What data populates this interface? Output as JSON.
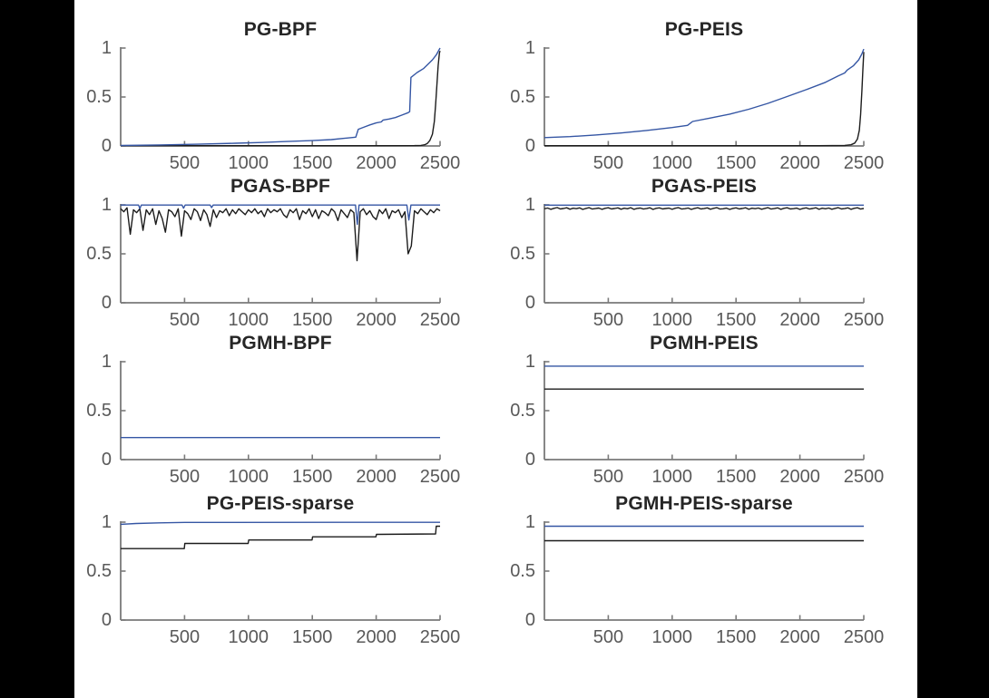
{
  "window": {
    "description": "MATLAB-style figure with 8 line subplots in a 4x2 grid, black letterbox bars on left and right edges"
  },
  "colors": {
    "blue_line": "#3556A4",
    "black_line": "#1c1c1c",
    "axis": "#7a7a7a",
    "tick_label": "#595959",
    "title": "#262626",
    "figure_background": "#ffffff",
    "bar_background": "#000000"
  },
  "chart_data": [
    {
      "type": "line",
      "title": "PG-BPF",
      "xlim": [
        0,
        2500
      ],
      "ylim": [
        0,
        1
      ],
      "grid": false,
      "legend": "none",
      "xticks": [
        "500",
        "1000",
        "1500",
        "2000",
        "2500"
      ],
      "xtick_values": [
        500,
        1000,
        1500,
        2000,
        2500
      ],
      "yticks": [
        "0",
        "0.5",
        "1"
      ],
      "ytick_values": [
        0,
        0.5,
        1
      ],
      "series": [
        {
          "name": "black-line",
          "color": "black_line",
          "points": [
            [
              0,
              0.003
            ],
            [
              2000,
              0.003
            ],
            [
              2300,
              0.004
            ],
            [
              2350,
              0.006
            ],
            [
              2380,
              0.012
            ],
            [
              2400,
              0.025
            ],
            [
              2420,
              0.055
            ],
            [
              2440,
              0.12
            ],
            [
              2455,
              0.25
            ],
            [
              2465,
              0.42
            ],
            [
              2475,
              0.62
            ],
            [
              2485,
              0.82
            ],
            [
              2495,
              0.95
            ],
            [
              2500,
              0.97
            ]
          ]
        },
        {
          "name": "blue-line",
          "color": "blue_line",
          "points": [
            [
              0,
              0.005
            ],
            [
              300,
              0.01
            ],
            [
              600,
              0.018
            ],
            [
              900,
              0.028
            ],
            [
              1100,
              0.035
            ],
            [
              1300,
              0.045
            ],
            [
              1500,
              0.055
            ],
            [
              1650,
              0.065
            ],
            [
              1750,
              0.078
            ],
            [
              1840,
              0.09
            ],
            [
              1860,
              0.17
            ],
            [
              1900,
              0.19
            ],
            [
              1950,
              0.215
            ],
            [
              2000,
              0.235
            ],
            [
              2040,
              0.245
            ],
            [
              2055,
              0.265
            ],
            [
              2100,
              0.275
            ],
            [
              2150,
              0.29
            ],
            [
              2200,
              0.315
            ],
            [
              2250,
              0.34
            ],
            [
              2262,
              0.35
            ],
            [
              2272,
              0.7
            ],
            [
              2320,
              0.75
            ],
            [
              2370,
              0.79
            ],
            [
              2410,
              0.84
            ],
            [
              2440,
              0.88
            ],
            [
              2470,
              0.93
            ],
            [
              2500,
              1.0
            ]
          ]
        }
      ]
    },
    {
      "type": "line",
      "title": "PG-PEIS",
      "xlim": [
        0,
        2500
      ],
      "ylim": [
        0,
        1
      ],
      "grid": false,
      "legend": "none",
      "xticks": [
        "500",
        "1000",
        "1500",
        "2000",
        "2500"
      ],
      "xtick_values": [
        500,
        1000,
        1500,
        2000,
        2500
      ],
      "yticks": [
        "0",
        "0.5",
        "1"
      ],
      "ytick_values": [
        0,
        0.5,
        1
      ],
      "series": [
        {
          "name": "black-line",
          "color": "black_line",
          "points": [
            [
              0,
              0.003
            ],
            [
              2150,
              0.003
            ],
            [
              2350,
              0.005
            ],
            [
              2400,
              0.012
            ],
            [
              2430,
              0.03
            ],
            [
              2450,
              0.07
            ],
            [
              2465,
              0.16
            ],
            [
              2475,
              0.32
            ],
            [
              2485,
              0.56
            ],
            [
              2493,
              0.78
            ],
            [
              2500,
              0.96
            ]
          ]
        },
        {
          "name": "blue-line",
          "color": "blue_line",
          "points": [
            [
              0,
              0.085
            ],
            [
              200,
              0.095
            ],
            [
              400,
              0.112
            ],
            [
              600,
              0.132
            ],
            [
              800,
              0.158
            ],
            [
              1000,
              0.188
            ],
            [
              1120,
              0.21
            ],
            [
              1160,
              0.25
            ],
            [
              1300,
              0.285
            ],
            [
              1450,
              0.325
            ],
            [
              1600,
              0.375
            ],
            [
              1750,
              0.435
            ],
            [
              1900,
              0.505
            ],
            [
              2050,
              0.575
            ],
            [
              2200,
              0.65
            ],
            [
              2300,
              0.715
            ],
            [
              2350,
              0.745
            ],
            [
              2370,
              0.775
            ],
            [
              2420,
              0.82
            ],
            [
              2460,
              0.88
            ],
            [
              2485,
              0.94
            ],
            [
              2500,
              0.99
            ]
          ]
        }
      ]
    },
    {
      "type": "line",
      "title": "PGAS-BPF",
      "xlim": [
        0,
        2500
      ],
      "ylim": [
        0,
        1
      ],
      "grid": false,
      "legend": "none",
      "xticks": [
        "500",
        "1000",
        "1500",
        "2000",
        "2500"
      ],
      "xtick_values": [
        500,
        1000,
        1500,
        2000,
        2500
      ],
      "yticks": [
        "0",
        "0.5",
        "1"
      ],
      "ytick_values": [
        0,
        0.5,
        1
      ],
      "series": [
        {
          "name": "black-line",
          "color": "black_line",
          "x0": 0,
          "dx": 25,
          "y": [
            0.96,
            0.93,
            0.97,
            0.7,
            0.95,
            0.92,
            0.96,
            0.74,
            0.95,
            0.9,
            0.96,
            0.8,
            0.94,
            0.86,
            0.72,
            0.95,
            0.93,
            0.88,
            0.96,
            0.68,
            0.94,
            0.91,
            0.85,
            0.96,
            0.93,
            0.84,
            0.95,
            0.9,
            0.78,
            0.95,
            0.87,
            0.94,
            0.92,
            0.96,
            0.89,
            0.95,
            0.91,
            0.96,
            0.93,
            0.9,
            0.95,
            0.92,
            0.96,
            0.91,
            0.94,
            0.88,
            0.96,
            0.92,
            0.95,
            0.93,
            0.96,
            0.9,
            0.87,
            0.95,
            0.92,
            0.96,
            0.85,
            0.94,
            0.91,
            0.96,
            0.88,
            0.95,
            0.86,
            0.94,
            0.92,
            0.89,
            0.96,
            0.93,
            0.84,
            0.95,
            0.91,
            0.87,
            0.95,
            0.92,
            0.43,
            0.93,
            0.96,
            0.9,
            0.94,
            0.88,
            0.85,
            0.95,
            0.91,
            0.96,
            0.86,
            0.94,
            0.92,
            0.95,
            0.87,
            0.93,
            0.5,
            0.58,
            0.94,
            0.91,
            0.96,
            0.93,
            0.9,
            0.95,
            0.92,
            0.96,
            0.94
          ]
        },
        {
          "name": "blue-line",
          "color": "blue_line",
          "points": [
            [
              0,
              0.998
            ],
            [
              140,
              0.998
            ],
            [
              150,
              0.962
            ],
            [
              162,
              0.998
            ],
            [
              480,
              0.998
            ],
            [
              492,
              0.966
            ],
            [
              505,
              0.998
            ],
            [
              700,
              0.998
            ],
            [
              712,
              0.972
            ],
            [
              724,
              0.998
            ],
            [
              1838,
              0.998
            ],
            [
              1852,
              0.8
            ],
            [
              1866,
              0.998
            ],
            [
              2240,
              0.998
            ],
            [
              2256,
              0.845
            ],
            [
              2272,
              0.998
            ],
            [
              2500,
              0.998
            ]
          ]
        }
      ]
    },
    {
      "type": "line",
      "title": "PGAS-PEIS",
      "xlim": [
        0,
        2500
      ],
      "ylim": [
        0,
        1
      ],
      "grid": false,
      "legend": "none",
      "xticks": [
        "500",
        "1000",
        "1500",
        "2000",
        "2500"
      ],
      "xtick_values": [
        500,
        1000,
        1500,
        2000,
        2500
      ],
      "yticks": [
        "0",
        "0.5",
        "1"
      ],
      "ytick_values": [
        0,
        0.5,
        1
      ],
      "series": [
        {
          "name": "black-line",
          "color": "black_line",
          "x0": 0,
          "dx": 25,
          "y": [
            0.96,
            0.968,
            0.955,
            0.965,
            0.972,
            0.958,
            0.963,
            0.97,
            0.956,
            0.966,
            0.961,
            0.969,
            0.954,
            0.964,
            0.971,
            0.957,
            0.962,
            0.968,
            0.955,
            0.965,
            0.97,
            0.958,
            0.963,
            0.969,
            0.956,
            0.966,
            0.96,
            0.971,
            0.955,
            0.964,
            0.968,
            0.957,
            0.962,
            0.97,
            0.954,
            0.965,
            0.969,
            0.958,
            0.963,
            0.967,
            0.955,
            0.966,
            0.971,
            0.957,
            0.961,
            0.968,
            0.954,
            0.964,
            0.97,
            0.958,
            0.962,
            0.969,
            0.956,
            0.965,
            0.971,
            0.957,
            0.96,
            0.967,
            0.954,
            0.964,
            0.969,
            0.958,
            0.963,
            0.97,
            0.955,
            0.966,
            0.961,
            0.968,
            0.956,
            0.964,
            0.971,
            0.957,
            0.962,
            0.969,
            0.955,
            0.965,
            0.97,
            0.958,
            0.961,
            0.967,
            0.954,
            0.964,
            0.969,
            0.957,
            0.963,
            0.97,
            0.955,
            0.966,
            0.96,
            0.968,
            0.956,
            0.964,
            0.971,
            0.958,
            0.962,
            0.969,
            0.955,
            0.965,
            0.97,
            0.957,
            0.963
          ]
        },
        {
          "name": "blue-line",
          "color": "blue_line",
          "points": [
            [
              0,
              0.997
            ],
            [
              2500,
              0.997
            ]
          ]
        }
      ]
    },
    {
      "type": "line",
      "title": "PGMH-BPF",
      "xlim": [
        0,
        2500
      ],
      "ylim": [
        0,
        1
      ],
      "grid": false,
      "legend": "none",
      "xticks": [
        "500",
        "1000",
        "1500",
        "2000",
        "2500"
      ],
      "xtick_values": [
        500,
        1000,
        1500,
        2000,
        2500
      ],
      "yticks": [
        "0",
        "0.5",
        "1"
      ],
      "ytick_values": [
        0,
        0.5,
        1
      ],
      "series": [
        {
          "name": "blue-line",
          "color": "blue_line",
          "points": [
            [
              0,
              0.225
            ],
            [
              2500,
              0.225
            ]
          ]
        }
      ]
    },
    {
      "type": "line",
      "title": "PGMH-PEIS",
      "xlim": [
        0,
        2500
      ],
      "ylim": [
        0,
        1
      ],
      "grid": false,
      "legend": "none",
      "xticks": [
        "500",
        "1000",
        "1500",
        "2000",
        "2500"
      ],
      "xtick_values": [
        500,
        1000,
        1500,
        2000,
        2500
      ],
      "yticks": [
        "0",
        "0.5",
        "1"
      ],
      "ytick_values": [
        0,
        0.5,
        1
      ],
      "series": [
        {
          "name": "black-line",
          "color": "black_line",
          "points": [
            [
              0,
              0.72
            ],
            [
              2500,
              0.72
            ]
          ]
        },
        {
          "name": "blue-line",
          "color": "blue_line",
          "points": [
            [
              0,
              0.955
            ],
            [
              2500,
              0.955
            ]
          ]
        }
      ]
    },
    {
      "type": "line",
      "title": "PG-PEIS-sparse",
      "xlim": [
        0,
        2500
      ],
      "ylim": [
        0,
        1
      ],
      "grid": false,
      "legend": "none",
      "xticks": [
        "500",
        "1000",
        "1500",
        "2000",
        "2500"
      ],
      "xtick_values": [
        500,
        1000,
        1500,
        2000,
        2500
      ],
      "yticks": [
        "0",
        "0.5",
        "1"
      ],
      "ytick_values": [
        0,
        0.5,
        1
      ],
      "series": [
        {
          "name": "black-line",
          "color": "black_line",
          "points": [
            [
              0,
              0.73
            ],
            [
              498,
              0.73
            ],
            [
              502,
              0.782
            ],
            [
              998,
              0.782
            ],
            [
              1002,
              0.818
            ],
            [
              1498,
              0.818
            ],
            [
              1502,
              0.85
            ],
            [
              1998,
              0.85
            ],
            [
              2002,
              0.875
            ],
            [
              2465,
              0.88
            ],
            [
              2470,
              0.958
            ],
            [
              2500,
              0.958
            ]
          ]
        },
        {
          "name": "blue-line",
          "color": "blue_line",
          "points": [
            [
              0,
              0.978
            ],
            [
              120,
              0.986
            ],
            [
              300,
              0.993
            ],
            [
              500,
              0.997
            ],
            [
              2500,
              0.998
            ]
          ]
        }
      ]
    },
    {
      "type": "line",
      "title": "PGMH-PEIS-sparse",
      "xlim": [
        0,
        2500
      ],
      "ylim": [
        0,
        1
      ],
      "grid": false,
      "legend": "none",
      "xticks": [
        "500",
        "1000",
        "1500",
        "2000",
        "2500"
      ],
      "xtick_values": [
        500,
        1000,
        1500,
        2000,
        2500
      ],
      "yticks": [
        "0",
        "0.5",
        "1"
      ],
      "ytick_values": [
        0,
        0.5,
        1
      ],
      "series": [
        {
          "name": "black-line",
          "color": "black_line",
          "points": [
            [
              0,
              0.81
            ],
            [
              2500,
              0.81
            ]
          ]
        },
        {
          "name": "blue-line",
          "color": "blue_line",
          "points": [
            [
              0,
              0.958
            ],
            [
              2500,
              0.958
            ]
          ]
        }
      ]
    }
  ]
}
